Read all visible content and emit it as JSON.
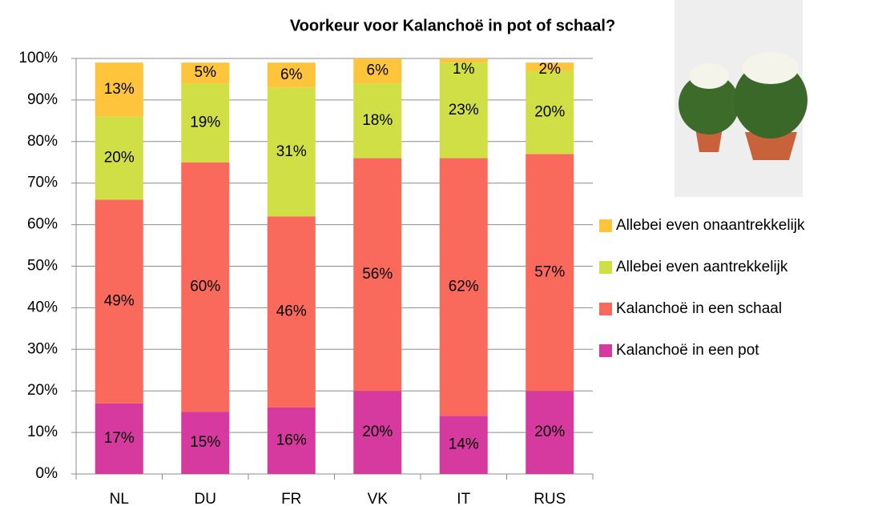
{
  "chart_data": {
    "type": "stacked_bar",
    "title": "Voorkeur voor Kalanchoë in pot of schaal?",
    "categories": [
      "NL",
      "DU",
      "FR",
      "VK",
      "IT",
      "RUS"
    ],
    "series": [
      {
        "name": "Kalanchoë in een pot",
        "color": "#d63a9e",
        "values": [
          17,
          15,
          16,
          20,
          14,
          20
        ],
        "value_labels": [
          "17%",
          "15%",
          "16%",
          "20%",
          "14%",
          "20%"
        ]
      },
      {
        "name": "Kalanchoë in een schaal",
        "color": "#fa6a5c",
        "values": [
          49,
          60,
          46,
          56,
          62,
          57
        ],
        "value_labels": [
          "49%",
          "60%",
          "46%",
          "56%",
          "62%",
          "57%"
        ]
      },
      {
        "name": "Allebei even aantrekkelijk",
        "color": "#cfdf45",
        "values": [
          20,
          19,
          31,
          18,
          23,
          20
        ],
        "value_labels": [
          "20%",
          "19%",
          "31%",
          "18%",
          "23%",
          "20%"
        ]
      },
      {
        "name": "Allebei even onaantrekkelijk",
        "color": "#fdc43c",
        "values": [
          13,
          5,
          6,
          6,
          1,
          2
        ],
        "value_labels": [
          "13%",
          "5%",
          "6%",
          "6%",
          "1%",
          "2%"
        ]
      }
    ],
    "ylim": [
      0,
      100
    ],
    "yticks": [
      {
        "value": 0,
        "label": "0%"
      },
      {
        "value": 10,
        "label": "10%"
      },
      {
        "value": 20,
        "label": "20%"
      },
      {
        "value": 30,
        "label": "30%"
      },
      {
        "value": 40,
        "label": "40%"
      },
      {
        "value": 50,
        "label": "50%"
      },
      {
        "value": 60,
        "label": "60%"
      },
      {
        "value": 70,
        "label": "70%"
      },
      {
        "value": 80,
        "label": "80%"
      },
      {
        "value": 90,
        "label": "90%"
      },
      {
        "value": 100,
        "label": "100%"
      }
    ],
    "grid": true,
    "legend": "right"
  }
}
